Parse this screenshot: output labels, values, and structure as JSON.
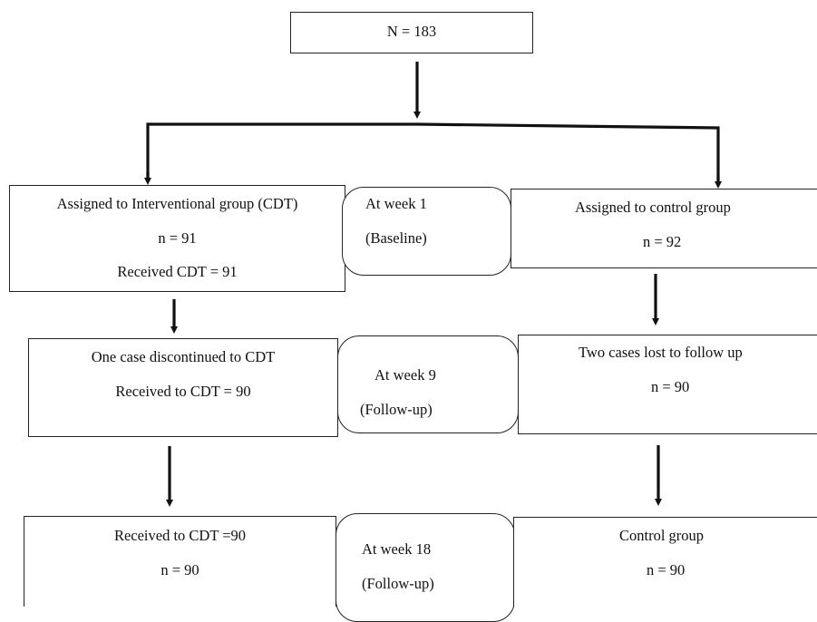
{
  "top": {
    "total": "N = 183"
  },
  "intervention": {
    "assigned": {
      "title": "Assigned to Interventional group (CDT)",
      "n": "n = 91",
      "received": "Received CDT = 91"
    },
    "week9": {
      "line1": "One case discontinued to CDT",
      "line2": "Received to CDT = 90"
    },
    "week18": {
      "line1": "Received to CDT =90",
      "n": "n = 90"
    }
  },
  "control": {
    "assigned": {
      "title": "Assigned to control group",
      "n": "n = 92"
    },
    "week9": {
      "line1": "Two cases lost to follow up",
      "n": "n = 90"
    },
    "week18": {
      "line1": "Control group",
      "n": "n = 90"
    }
  },
  "timepoints": {
    "week1": {
      "line1": "At week 1",
      "line2": "(Baseline)"
    },
    "week9": {
      "line1": "At week 9",
      "line2": "(Follow-up)"
    },
    "week18": {
      "line1": "At week 18",
      "line2": "(Follow-up)"
    }
  }
}
